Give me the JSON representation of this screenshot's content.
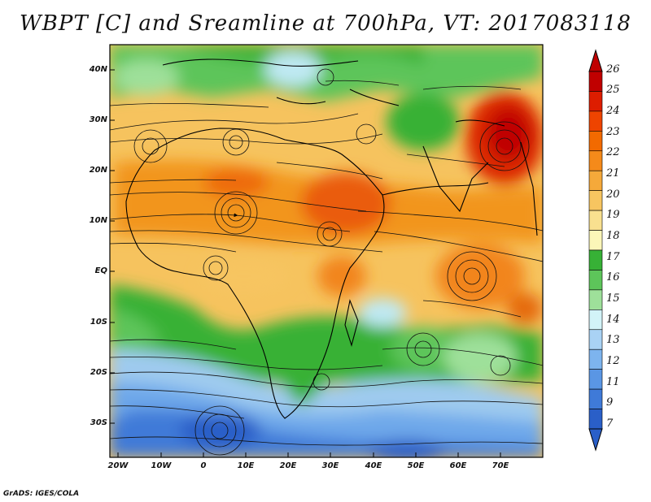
{
  "title": "WBPT [C] and Sreamline at 700hPa, VT: 2017083118",
  "credit": "GrADS: IGES/COLA",
  "lat_labels": [
    "40N",
    "30N",
    "20N",
    "10N",
    "EQ",
    "10S",
    "20S",
    "30S"
  ],
  "lon_labels": [
    "20W",
    "10W",
    "0",
    "10E",
    "20E",
    "30E",
    "40E",
    "50E",
    "60E",
    "70E"
  ],
  "colorbar": {
    "labels": [
      "26",
      "25",
      "24",
      "23",
      "22",
      "21",
      "20",
      "19",
      "18",
      "17",
      "16",
      "15",
      "14",
      "13",
      "12",
      "11",
      "9",
      "7"
    ],
    "colors": [
      "#c00000",
      "#dd1d00",
      "#ee4400",
      "#f26a00",
      "#f58a1a",
      "#f5a93a",
      "#f7c560",
      "#f9e08f",
      "#fbf6b8",
      "#37b136",
      "#5dc55a",
      "#9ee09a",
      "#d2f3f8",
      "#a9d2f4",
      "#7db4ee",
      "#5a96e4",
      "#3f7ad8",
      "#2a5fc8"
    ]
  },
  "map": {
    "lon_range": [
      -22,
      80
    ],
    "lat_range": [
      -37,
      45
    ],
    "field": "wet-bulb potential temperature (C)",
    "level": "700hPa",
    "valid_time": "2017083118"
  }
}
